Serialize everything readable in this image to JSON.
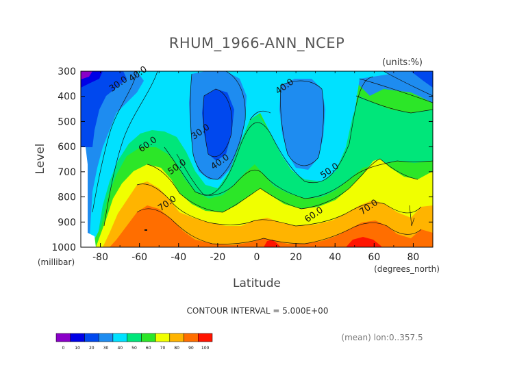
{
  "chart_data": {
    "type": "contour",
    "title": "RHUM_1966-ANN_NCEP",
    "units": "(units:%)",
    "xlabel": "Latitude",
    "ylabel": "Level",
    "x_unit_label": "(degrees_north)",
    "y_unit_label": "(millibar)",
    "xlim": [
      -90,
      90
    ],
    "ylim": [
      1000,
      300
    ],
    "x_ticks": [
      -80,
      -60,
      -40,
      -20,
      0,
      20,
      40,
      60,
      80
    ],
    "y_ticks": [
      300,
      400,
      500,
      600,
      700,
      800,
      900,
      1000
    ],
    "contour_interval_text": "CONTOUR INTERVAL = 5.000E+00",
    "footnote": "(mean) lon:0..357.5",
    "contour_labels": [
      {
        "text": "30.0",
        "lat": -70,
        "lev": 360
      },
      {
        "text": "40.0",
        "lat": -60,
        "lev": 320
      },
      {
        "text": "30.0",
        "lat": -28,
        "lev": 550
      },
      {
        "text": "40.0",
        "lat": -18,
        "lev": 670
      },
      {
        "text": "40.0",
        "lat": 15,
        "lev": 370
      },
      {
        "text": "60.0",
        "lat": -55,
        "lev": 600
      },
      {
        "text": "50.0",
        "lat": -40,
        "lev": 690
      },
      {
        "text": "50.0",
        "lat": 38,
        "lev": 705
      },
      {
        "text": "70.0",
        "lat": -45,
        "lev": 835
      },
      {
        "text": "60.0",
        "lat": 30,
        "lev": 880
      },
      {
        "text": "70.0",
        "lat": 58,
        "lev": 850
      }
    ],
    "colorbar": {
      "levels": [
        0,
        10,
        20,
        30,
        40,
        50,
        60,
        70,
        80,
        90,
        100
      ],
      "colors": [
        "#8a00c8",
        "#0000e6",
        "#0048ee",
        "#1e8cf0",
        "#00e1ff",
        "#00e67a",
        "#2ce628",
        "#f0ff00",
        "#ffb400",
        "#ff6e00",
        "#ff1400"
      ]
    }
  }
}
